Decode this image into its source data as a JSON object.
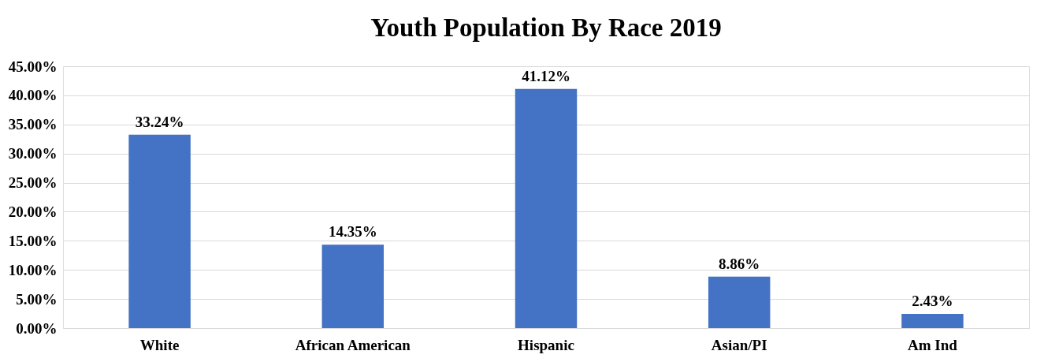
{
  "chart_data": {
    "type": "bar",
    "title": "Youth Population By Race 2019",
    "categories": [
      "White",
      "African American",
      "Hispanic",
      "Asian/PI",
      "Am Ind"
    ],
    "values": [
      33.24,
      14.35,
      41.12,
      8.86,
      2.43
    ],
    "value_labels": [
      "33.24%",
      "14.35%",
      "41.12%",
      "8.86%",
      "2.43%"
    ],
    "color": "#4472c4",
    "ylim": [
      0,
      45
    ],
    "yticks": [
      {
        "value": 0,
        "label": "0.00%"
      },
      {
        "value": 5,
        "label": "5.00%"
      },
      {
        "value": 10,
        "label": "10.00%"
      },
      {
        "value": 15,
        "label": "15.00%"
      },
      {
        "value": 20,
        "label": "20.00%"
      },
      {
        "value": 25,
        "label": "25.00%"
      },
      {
        "value": 30,
        "label": "30.00%"
      },
      {
        "value": 35,
        "label": "35.00%"
      },
      {
        "value": 40,
        "label": "40.00%"
      },
      {
        "value": 45,
        "label": "45.00%"
      }
    ],
    "grid": "y"
  }
}
